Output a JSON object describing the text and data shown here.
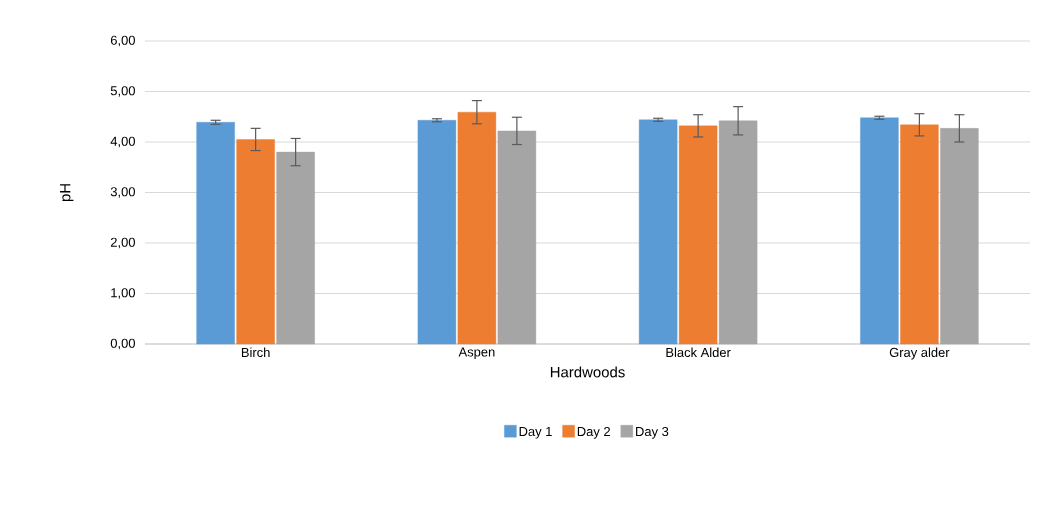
{
  "chart_data": {
    "type": "bar",
    "xlabel": "Hardwoods",
    "ylabel": "pH",
    "categories": [
      "Birch",
      "Aspen",
      "Black Alder",
      "Gray alder"
    ],
    "series": [
      {
        "name": "Day 1",
        "color": "#5b9bd5",
        "values": [
          4.39,
          4.43,
          4.44,
          4.48
        ],
        "errors": [
          0.04,
          0.03,
          0.03,
          0.03
        ]
      },
      {
        "name": "Day 2",
        "color": "#ed7d31",
        "values": [
          4.05,
          4.59,
          4.32,
          4.34
        ],
        "errors": [
          0.22,
          0.23,
          0.22,
          0.22
        ]
      },
      {
        "name": "Day 3",
        "color": "#a5a5a5",
        "values": [
          3.8,
          4.22,
          4.42,
          4.27
        ],
        "errors": [
          0.27,
          0.27,
          0.28,
          0.27
        ]
      }
    ],
    "ylim": [
      0,
      6
    ],
    "yticks": [
      {
        "value": 0,
        "label": "0,00"
      },
      {
        "value": 1,
        "label": "1,00"
      },
      {
        "value": 2,
        "label": "2,00"
      },
      {
        "value": 3,
        "label": "3,00"
      },
      {
        "value": 4,
        "label": "4,00"
      },
      {
        "value": 5,
        "label": "5,00"
      },
      {
        "value": 6,
        "label": "6,00"
      }
    ],
    "grid": "y",
    "legend": "bottom"
  }
}
